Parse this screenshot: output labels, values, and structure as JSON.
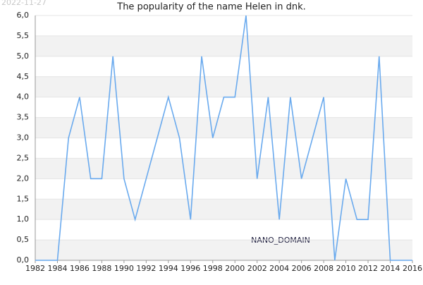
{
  "chart_data": {
    "type": "line",
    "title": "The popularity of the name Helen in dnk.",
    "date_stamp": "2022-11-27",
    "watermark": "NANO_DOMAIN",
    "x": [
      1982,
      1983,
      1984,
      1985,
      1986,
      1987,
      1988,
      1989,
      1990,
      1991,
      1992,
      1993,
      1994,
      1995,
      1996,
      1997,
      1998,
      1999,
      2000,
      2001,
      2002,
      2003,
      2004,
      2005,
      2006,
      2007,
      2008,
      2009,
      2010,
      2011,
      2012,
      2013,
      2014,
      2015,
      2016
    ],
    "series": [
      {
        "name": "Helen",
        "color": "#6aaaee",
        "values": [
          0,
          0,
          0,
          3,
          4,
          2,
          2,
          5,
          2,
          1,
          2,
          3,
          4,
          3,
          1,
          5,
          3,
          4,
          4,
          6,
          2,
          4,
          1,
          4,
          2,
          3,
          4,
          0,
          2,
          1,
          1,
          5,
          0,
          0,
          0
        ]
      }
    ],
    "xlim": [
      1982,
      2016
    ],
    "xticks": [
      1982,
      1984,
      1986,
      1988,
      1990,
      1992,
      1994,
      1996,
      1998,
      2000,
      2002,
      2004,
      2006,
      2008,
      2010,
      2012,
      2014,
      2016
    ],
    "ylim": [
      0,
      6
    ],
    "yticks": [
      {
        "value": 0,
        "label": "0,0"
      },
      {
        "value": 0.5,
        "label": "0,5"
      },
      {
        "value": 1,
        "label": "1,0"
      },
      {
        "value": 1.5,
        "label": "1,5"
      },
      {
        "value": 2,
        "label": "2,0"
      },
      {
        "value": 2.5,
        "label": "2,5"
      },
      {
        "value": 3,
        "label": "3,0"
      },
      {
        "value": 3.5,
        "label": "3,5"
      },
      {
        "value": 4,
        "label": "4,0"
      },
      {
        "value": 4.5,
        "label": "4,5"
      },
      {
        "value": 5,
        "label": "5,0"
      },
      {
        "value": 5.5,
        "label": "5,5"
      },
      {
        "value": 6,
        "label": "6,0"
      }
    ],
    "grid": true
  }
}
